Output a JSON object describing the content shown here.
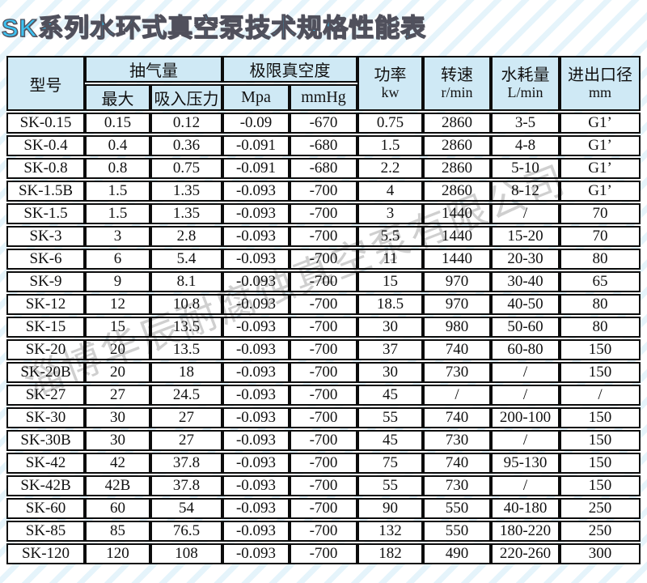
{
  "title": "SK系列水环式真空泵技术规格性能表",
  "watermark": "淄博华辰耐腐蚀真空泵有限公司",
  "colors": {
    "title_fill": "#3cc2f2",
    "title_outline": "#50505c",
    "header_bg": "#cfe9f5",
    "table_border": "#0c0c0c",
    "watermark_gray": "#828282"
  },
  "table": {
    "headers": {
      "model": "型号",
      "pumping_group": "抽气量",
      "pumping_max": "最大",
      "pumping_suction": "吸入压力",
      "vacuum_group": "极限真空度",
      "vacuum_mpa": "Mpa",
      "vacuum_mmhg": "mmHg",
      "power": "功率",
      "power_unit": "kw",
      "speed": "转速",
      "speed_unit": "r/min",
      "water": "水耗量",
      "water_unit": "L/min",
      "port": "进出口径",
      "port_unit": "mm"
    },
    "rows": [
      [
        "SK-0.15",
        "0.15",
        "0.12",
        "-0.09",
        "-670",
        "0.75",
        "2860",
        "3-5",
        "G1’"
      ],
      [
        "SK-0.4",
        "0.4",
        "0.36",
        "-0.091",
        "-680",
        "1.5",
        "2860",
        "4-8",
        "G1’"
      ],
      [
        "SK-0.8",
        "0.8",
        "0.75",
        "-0.091",
        "-680",
        "2.2",
        "2860",
        "5-10",
        "G1’"
      ],
      [
        "SK-1.5B",
        "1.5",
        "1.35",
        "-0.093",
        "-700",
        "4",
        "2860",
        "8-12",
        "G1’"
      ],
      [
        "SK-1.5",
        "1.5",
        "1.35",
        "-0.093",
        "-700",
        "3",
        "1440",
        "/",
        "70"
      ],
      [
        "SK-3",
        "3",
        "2.8",
        "-0.093",
        "-700",
        "5.5",
        "1440",
        "15-20",
        "70"
      ],
      [
        "SK-6",
        "6",
        "5.4",
        "-0.093",
        "-700",
        "11",
        "1440",
        "20-30",
        "80"
      ],
      [
        "SK-9",
        "9",
        "8.1",
        "-0.093",
        "-700",
        "15",
        "970",
        "30-40",
        "65"
      ],
      [
        "SK-12",
        "12",
        "10.8",
        "-0.093",
        "-700",
        "18.5",
        "970",
        "40-50",
        "80"
      ],
      [
        "SK-15",
        "15",
        "13.5",
        "-0.093",
        "-700",
        "30",
        "980",
        "50-60",
        "80"
      ],
      [
        "SK-20",
        "20",
        "13.5",
        "-0.093",
        "-700",
        "37",
        "740",
        "60-80",
        "150"
      ],
      [
        "SK-20B",
        "20",
        "18",
        "-0.093",
        "-700",
        "30",
        "730",
        "/",
        "150"
      ],
      [
        "SK-27",
        "27",
        "24.5",
        "-0.093",
        "-700",
        "45",
        "/",
        "/",
        "/"
      ],
      [
        "SK-30",
        "30",
        "27",
        "-0.093",
        "-700",
        "55",
        "740",
        "200-100",
        "150"
      ],
      [
        "SK-30B",
        "30",
        "27",
        "-0.093",
        "-700",
        "45",
        "730",
        "/",
        "150"
      ],
      [
        "SK-42",
        "42",
        "37.8",
        "-0.093",
        "-700",
        "75",
        "740",
        "95-130",
        "150"
      ],
      [
        "SK-42B",
        "42B",
        "37.8",
        "-0.093",
        "-700",
        "55",
        "730",
        "/",
        "150"
      ],
      [
        "SK-60",
        "60",
        "54",
        "-0.093",
        "-700",
        "90",
        "550",
        "40-180",
        "250"
      ],
      [
        "SK-85",
        "85",
        "76.5",
        "-0.093",
        "-700",
        "132",
        "550",
        "180-220",
        "250"
      ],
      [
        "SK-120",
        "120",
        "108",
        "-0.093",
        "-700",
        "182",
        "490",
        "220-260",
        "300"
      ]
    ]
  }
}
